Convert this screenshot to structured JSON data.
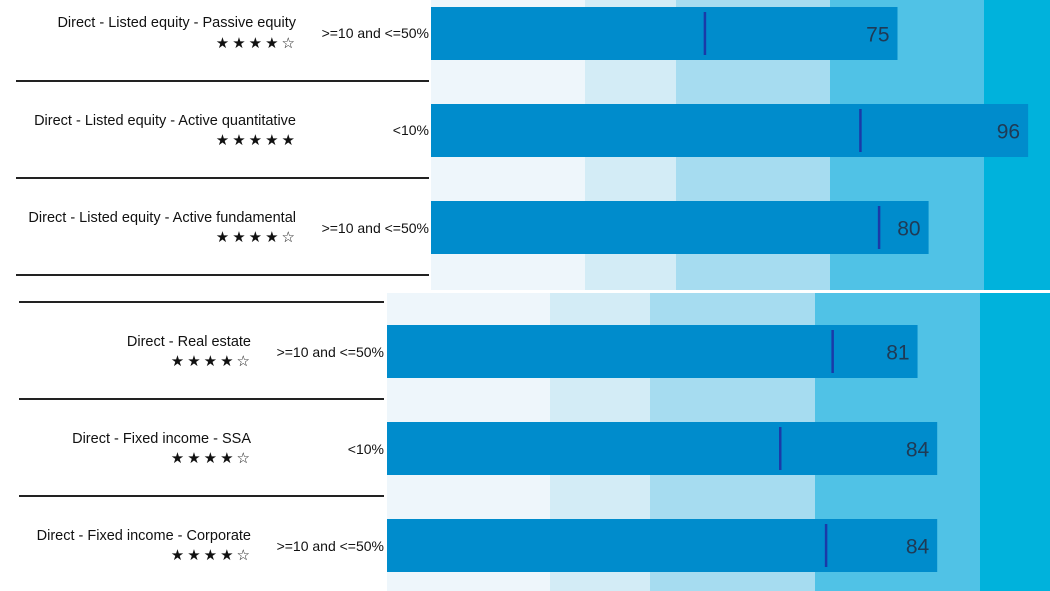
{
  "chart_data": [
    {
      "type": "bar",
      "orientation": "horizontal",
      "subtype": "bullet",
      "bands": 5,
      "xlim": [
        0,
        100
      ],
      "rows": [
        {
          "label": "Direct - Listed equity - Passive equity",
          "stars": "★★★★☆",
          "range": ">=10 and <=50%",
          "value": 75,
          "marker": 44
        },
        {
          "label": "Direct - Listed equity - Active quantitative",
          "stars": "★★★★★",
          "range": "<10%",
          "value": 96,
          "marker": 69
        },
        {
          "label": "Direct - Listed equity - Active fundamental",
          "stars": "★★★★☆",
          "range": ">=10 and <=50%",
          "value": 80,
          "marker": 72
        }
      ]
    },
    {
      "type": "bar",
      "orientation": "horizontal",
      "subtype": "bullet",
      "bands": 5,
      "xlim": [
        0,
        100
      ],
      "rows": [
        {
          "label": "Direct - Real estate",
          "stars": "★★★★☆",
          "range": ">=10 and <=50%",
          "value": 81,
          "marker": 68
        },
        {
          "label": "Direct - Fixed income - SSA",
          "stars": "★★★★☆",
          "range": "<10%",
          "value": 84,
          "marker": 60
        },
        {
          "label": "Direct - Fixed income - Corporate",
          "stars": "★★★★☆",
          "range": ">=10 and <=50%",
          "value": 84,
          "marker": 67
        }
      ]
    }
  ],
  "colors": {
    "bands": [
      "#eef6fb",
      "#d3ecf6",
      "#a6dcf0",
      "#50c2e6",
      "#00b2dc"
    ],
    "bar": "#008ccc",
    "marker": "#1a3aa8"
  }
}
